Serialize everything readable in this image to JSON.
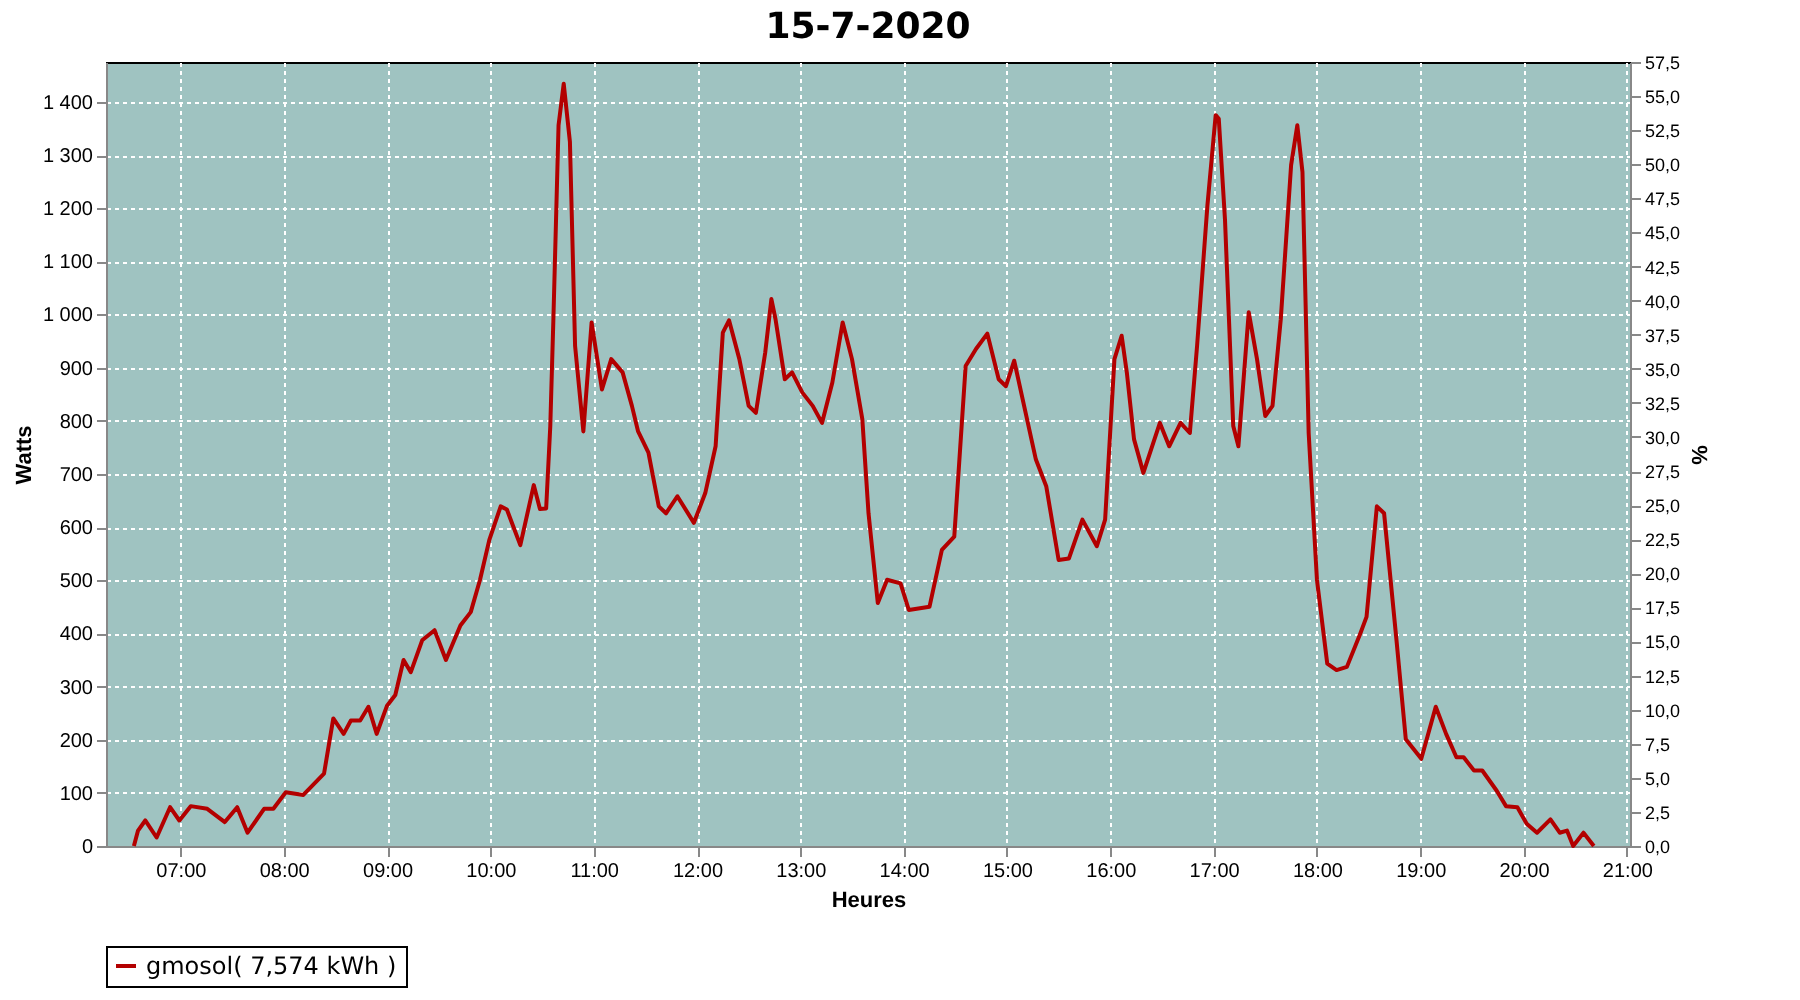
{
  "chart_data": {
    "type": "line",
    "title": "15-7-2020",
    "xlabel": "Heures",
    "ylabel": "Watts",
    "y2label": "%",
    "xlim": [
      6.28,
      21.03
    ],
    "ylim": [
      0,
      1475
    ],
    "y2lim": [
      0,
      57.5
    ],
    "xticks": [
      {
        "value": 7,
        "label": "07:00"
      },
      {
        "value": 8,
        "label": "08:00"
      },
      {
        "value": 9,
        "label": "09:00"
      },
      {
        "value": 10,
        "label": "10:00"
      },
      {
        "value": 11,
        "label": "11:00"
      },
      {
        "value": 12,
        "label": "12:00"
      },
      {
        "value": 13,
        "label": "13:00"
      },
      {
        "value": 14,
        "label": "14:00"
      },
      {
        "value": 15,
        "label": "15:00"
      },
      {
        "value": 16,
        "label": "16:00"
      },
      {
        "value": 17,
        "label": "17:00"
      },
      {
        "value": 18,
        "label": "18:00"
      },
      {
        "value": 19,
        "label": "19:00"
      },
      {
        "value": 20,
        "label": "20:00"
      },
      {
        "value": 21,
        "label": "21:00"
      }
    ],
    "yticks": [
      0,
      100,
      200,
      300,
      400,
      500,
      600,
      700,
      800,
      900,
      {
        "value": 1000,
        "label": "1 000"
      },
      {
        "value": 1100,
        "label": "1 100"
      },
      {
        "value": 1200,
        "label": "1 200"
      },
      {
        "value": 1300,
        "label": "1 300"
      },
      {
        "value": 1400,
        "label": "1 400"
      }
    ],
    "y2ticks": [
      {
        "value": 0,
        "label": "0,0"
      },
      {
        "value": 2.5,
        "label": "2,5"
      },
      {
        "value": 5,
        "label": "5,0"
      },
      {
        "value": 7.5,
        "label": "7,5"
      },
      {
        "value": 10,
        "label": "10,0"
      },
      {
        "value": 12.5,
        "label": "12,5"
      },
      {
        "value": 15,
        "label": "15,0"
      },
      {
        "value": 17.5,
        "label": "17,5"
      },
      {
        "value": 20,
        "label": "20,0"
      },
      {
        "value": 22.5,
        "label": "22,5"
      },
      {
        "value": 25,
        "label": "25,0"
      },
      {
        "value": 27.5,
        "label": "27,5"
      },
      {
        "value": 30,
        "label": "30,0"
      },
      {
        "value": 32.5,
        "label": "32,5"
      },
      {
        "value": 35,
        "label": "35,0"
      },
      {
        "value": 37.5,
        "label": "37,5"
      },
      {
        "value": 40,
        "label": "40,0"
      },
      {
        "value": 42.5,
        "label": "42,5"
      },
      {
        "value": 45,
        "label": "45,0"
      },
      {
        "value": 47.5,
        "label": "47,5"
      },
      {
        "value": 50,
        "label": "50,0"
      },
      {
        "value": 52.5,
        "label": "52,5"
      },
      {
        "value": 55,
        "label": "55,0"
      },
      {
        "value": 57.5,
        "label": "57,5"
      }
    ],
    "grid": true,
    "legend": "bottom",
    "marker": "none",
    "line_style": "solid",
    "series": [
      {
        "name": "gmosol( 7,574 kWh )",
        "color": "#b30000",
        "x": [
          6.55,
          6.59,
          6.66,
          6.77,
          6.9,
          6.99,
          7.1,
          7.26,
          7.43,
          7.55,
          7.65,
          7.81,
          7.9,
          8.02,
          8.19,
          8.39,
          8.48,
          8.58,
          8.65,
          8.74,
          8.82,
          8.9,
          9.0,
          9.08,
          9.16,
          9.23,
          9.34,
          9.46,
          9.57,
          9.71,
          9.81,
          9.9,
          9.99,
          10.1,
          10.16,
          10.29,
          10.42,
          10.48,
          10.54,
          10.58,
          10.61,
          10.66,
          10.71,
          10.77,
          10.82,
          10.9,
          10.98,
          11.08,
          11.17,
          11.28,
          11.37,
          11.43,
          11.53,
          11.63,
          11.7,
          11.81,
          11.97,
          12.08,
          12.18,
          12.25,
          12.31,
          12.41,
          12.5,
          12.57,
          12.66,
          12.72,
          12.76,
          12.85,
          12.92,
          13.02,
          13.12,
          13.21,
          13.31,
          13.41,
          13.5,
          13.6,
          13.66,
          13.75,
          13.84,
          13.97,
          14.05,
          14.25,
          14.37,
          14.49,
          14.6,
          14.7,
          14.81,
          14.92,
          14.99,
          15.07,
          15.28,
          15.38,
          15.5,
          15.6,
          15.73,
          15.87,
          15.95,
          16.04,
          16.11,
          16.16,
          16.23,
          16.32,
          16.48,
          16.57,
          16.68,
          16.77,
          16.84,
          16.94,
          17.02,
          17.05,
          17.11,
          17.19,
          17.24,
          17.34,
          17.42,
          17.5,
          17.57,
          17.65,
          17.75,
          17.81,
          17.86,
          17.92,
          18.0,
          18.1,
          18.19,
          18.29,
          18.42,
          18.48,
          18.58,
          18.65,
          18.77,
          18.86,
          19.01,
          19.15,
          19.25,
          19.35,
          19.42,
          19.52,
          19.6,
          19.74,
          19.83,
          19.94,
          20.03,
          20.13,
          20.26,
          20.35,
          20.42,
          20.48,
          20.58,
          20.68
        ],
        "values": [
          0,
          29,
          48,
          16,
          73,
          48,
          75,
          70,
          45,
          73,
          25,
          70,
          70,
          101,
          96,
          136,
          240,
          211,
          236,
          236,
          262,
          211,
          264,
          284,
          350,
          327,
          387,
          406,
          350,
          415,
          440,
          501,
          576,
          639,
          633,
          566,
          679,
          634,
          635,
          790,
          991,
          1356,
          1434,
          1325,
          941,
          780,
          985,
          859,
          916,
          891,
          828,
          780,
          740,
          639,
          626,
          658,
          608,
          664,
          752,
          966,
          989,
          916,
          828,
          815,
          928,
          1029,
          991,
          878,
          891,
          853,
          828,
          796,
          872,
          985,
          916,
          803,
          626,
          457,
          501,
          494,
          444,
          450,
          557,
          582,
          903,
          935,
          964,
          878,
          865,
          913,
          727,
          677,
          538,
          541,
          614,
          564,
          614,
          916,
          960,
          891,
          765,
          702,
          796,
          752,
          796,
          777,
          941,
          1205,
          1375,
          1368,
          1179,
          790,
          752,
          1004,
          916,
          809,
          828,
          991,
          1281,
          1356,
          1268,
          777,
          501,
          343,
          331,
          337,
          400,
          431,
          639,
          626,
          387,
          201,
          164,
          262,
          211,
          167,
          167,
          142,
          142,
          104,
          75,
          73,
          42,
          25,
          50,
          25,
          29,
          0,
          25,
          0
        ]
      }
    ]
  }
}
